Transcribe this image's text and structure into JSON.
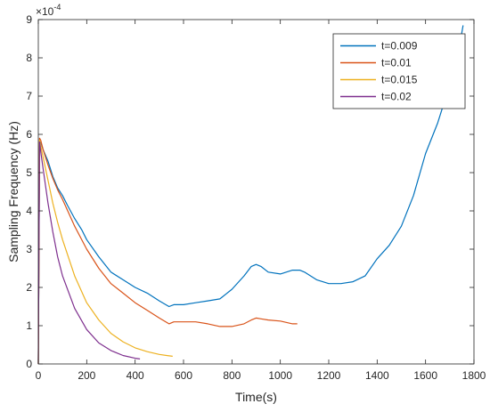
{
  "chart_data": {
    "type": "line",
    "title": "",
    "xlabel": "Time(s)",
    "ylabel": "Sampling Frequency (Hz)",
    "y_exponent_label": "×10",
    "y_exponent_power": "-4",
    "xlim": [
      0,
      1800
    ],
    "ylim": [
      0,
      9
    ],
    "x_ticks": [
      0,
      200,
      400,
      600,
      800,
      1000,
      1200,
      1400,
      1600,
      1800
    ],
    "y_ticks": [
      0,
      1,
      2,
      3,
      4,
      5,
      6,
      7,
      8,
      9
    ],
    "grid": false,
    "legend_position": "top-right",
    "series": [
      {
        "name": "t=0.009",
        "color": "#0072BD",
        "x": [
          0,
          5,
          10,
          20,
          40,
          60,
          80,
          100,
          120,
          150,
          180,
          200,
          250,
          300,
          350,
          400,
          450,
          500,
          540,
          560,
          600,
          650,
          700,
          750,
          800,
          850,
          880,
          900,
          920,
          950,
          1000,
          1050,
          1080,
          1100,
          1150,
          1200,
          1250,
          1300,
          1350,
          1400,
          1450,
          1500,
          1550,
          1600,
          1650,
          1680,
          1700,
          1720,
          1740,
          1755
        ],
        "y": [
          0.0,
          5.7,
          5.8,
          5.6,
          5.3,
          4.9,
          4.6,
          4.4,
          4.15,
          3.8,
          3.5,
          3.25,
          2.8,
          2.4,
          2.2,
          2.0,
          1.85,
          1.65,
          1.5,
          1.55,
          1.55,
          1.6,
          1.65,
          1.7,
          1.95,
          2.3,
          2.55,
          2.6,
          2.55,
          2.4,
          2.35,
          2.45,
          2.45,
          2.4,
          2.2,
          2.1,
          2.1,
          2.15,
          2.3,
          2.75,
          3.1,
          3.6,
          4.4,
          5.5,
          6.3,
          6.9,
          7.25,
          7.65,
          8.3,
          8.85
        ]
      },
      {
        "name": "t=0.01",
        "color": "#D95319",
        "x": [
          0,
          5,
          10,
          20,
          40,
          60,
          80,
          100,
          150,
          200,
          250,
          300,
          350,
          400,
          450,
          500,
          540,
          560,
          600,
          650,
          700,
          750,
          800,
          850,
          880,
          900,
          920,
          950,
          1000,
          1050,
          1070
        ],
        "y": [
          0.0,
          5.9,
          5.85,
          5.6,
          5.2,
          4.85,
          4.55,
          4.3,
          3.6,
          3.0,
          2.5,
          2.1,
          1.85,
          1.6,
          1.4,
          1.2,
          1.05,
          1.1,
          1.1,
          1.1,
          1.05,
          0.98,
          0.98,
          1.05,
          1.15,
          1.2,
          1.18,
          1.15,
          1.12,
          1.05,
          1.05
        ]
      },
      {
        "name": "t=0.015",
        "color": "#EDB120",
        "x": [
          0,
          5,
          10,
          20,
          40,
          60,
          80,
          100,
          150,
          200,
          250,
          300,
          350,
          400,
          450,
          500,
          530,
          555
        ],
        "y": [
          0.0,
          5.85,
          5.7,
          5.4,
          4.8,
          4.2,
          3.7,
          3.25,
          2.3,
          1.6,
          1.15,
          0.8,
          0.58,
          0.42,
          0.32,
          0.25,
          0.22,
          0.2
        ]
      },
      {
        "name": "t=0.02",
        "color": "#7E2F8E",
        "x": [
          0,
          5,
          10,
          20,
          40,
          60,
          80,
          100,
          150,
          200,
          250,
          300,
          350,
          400,
          420
        ],
        "y": [
          0.0,
          5.8,
          5.55,
          5.1,
          4.2,
          3.45,
          2.8,
          2.3,
          1.45,
          0.9,
          0.55,
          0.35,
          0.22,
          0.15,
          0.13
        ]
      }
    ]
  }
}
